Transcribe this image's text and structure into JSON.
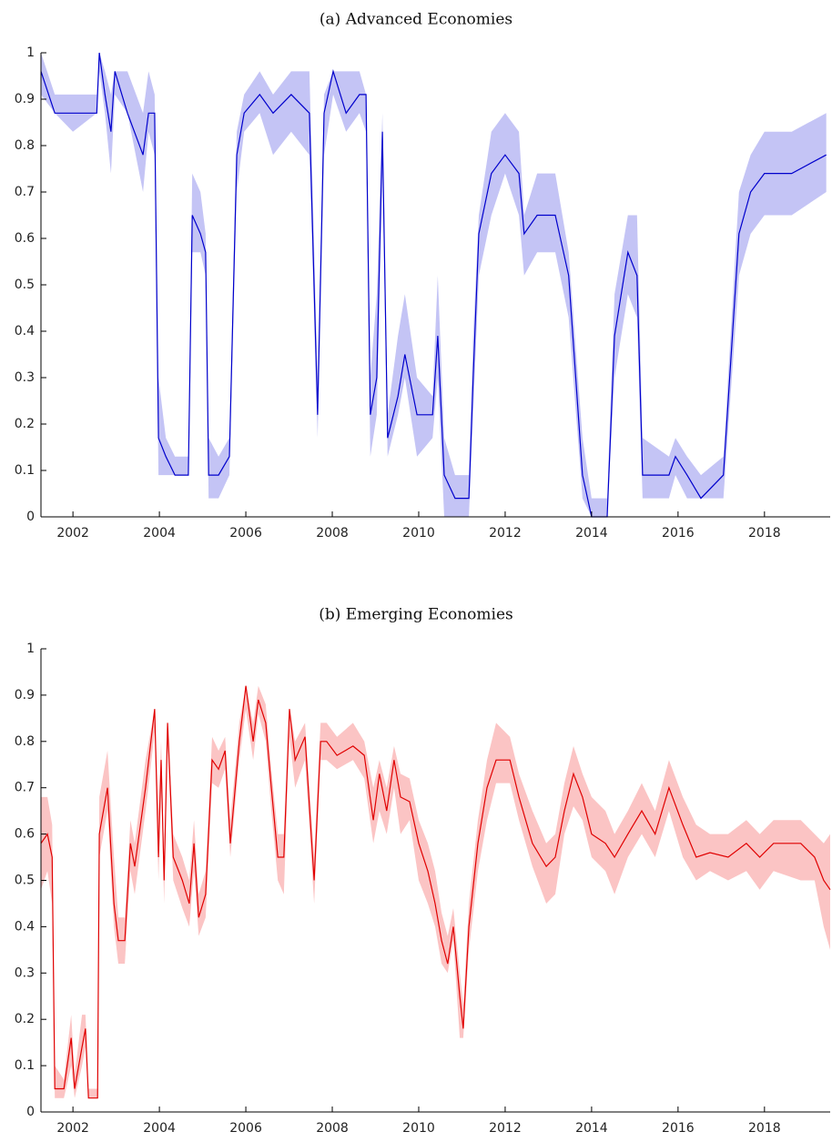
{
  "chart_data": [
    {
      "type": "line",
      "title": "(a) Advanced Economies",
      "color": "#0000cc",
      "band_color": "#c4c4f5",
      "x": [
        2001.26,
        2001.58,
        2002.0,
        2002.55,
        2002.61,
        2002.74,
        2002.88,
        2002.97,
        2003.26,
        2003.62,
        2003.75,
        2003.89,
        2003.98,
        2004.15,
        2004.36,
        2004.67,
        2004.76,
        2004.95,
        2005.07,
        2005.14,
        2005.37,
        2005.62,
        2005.79,
        2005.96,
        2006.32,
        2006.63,
        2007.05,
        2007.47,
        2007.66,
        2007.81,
        2008.02,
        2008.32,
        2008.63,
        2008.78,
        2008.88,
        2009.03,
        2009.16,
        2009.28,
        2009.52,
        2009.68,
        2009.96,
        2010.32,
        2010.44,
        2010.59,
        2010.84,
        2011.16,
        2011.26,
        2011.39,
        2011.68,
        2012.0,
        2012.32,
        2012.44,
        2012.74,
        2013.16,
        2013.47,
        2013.79,
        2014.0,
        2014.36,
        2014.53,
        2014.84,
        2015.05,
        2015.18,
        2015.79,
        2015.94,
        2016.21,
        2016.53,
        2017.05,
        2017.41,
        2017.68,
        2018.0,
        2018.63,
        2019.43
      ],
      "values": [
        0.96,
        0.87,
        0.87,
        0.87,
        1.0,
        0.91,
        0.83,
        0.96,
        0.87,
        0.78,
        0.87,
        0.87,
        0.17,
        0.13,
        0.09,
        0.09,
        0.65,
        0.61,
        0.57,
        0.09,
        0.09,
        0.13,
        0.78,
        0.87,
        0.91,
        0.87,
        0.91,
        0.87,
        0.22,
        0.87,
        0.96,
        0.87,
        0.91,
        0.91,
        0.22,
        0.3,
        0.83,
        0.17,
        0.26,
        0.35,
        0.22,
        0.22,
        0.39,
        0.09,
        0.04,
        0.04,
        0.3,
        0.61,
        0.74,
        0.78,
        0.74,
        0.61,
        0.65,
        0.65,
        0.52,
        0.09,
        0.0,
        0.0,
        0.39,
        0.57,
        0.52,
        0.09,
        0.09,
        0.13,
        0.09,
        0.04,
        0.09,
        0.61,
        0.7,
        0.74,
        0.74,
        0.78
      ],
      "lower": [
        0.91,
        0.87,
        0.83,
        0.87,
        0.96,
        0.87,
        0.74,
        0.91,
        0.87,
        0.7,
        0.83,
        0.78,
        0.09,
        0.09,
        0.09,
        0.09,
        0.57,
        0.57,
        0.52,
        0.04,
        0.04,
        0.09,
        0.7,
        0.83,
        0.87,
        0.78,
        0.83,
        0.78,
        0.17,
        0.78,
        0.91,
        0.83,
        0.87,
        0.83,
        0.13,
        0.22,
        0.74,
        0.13,
        0.22,
        0.3,
        0.13,
        0.17,
        0.3,
        0.0,
        0.0,
        0.0,
        0.22,
        0.52,
        0.65,
        0.74,
        0.65,
        0.52,
        0.57,
        0.57,
        0.43,
        0.04,
        0.0,
        0.0,
        0.3,
        0.48,
        0.43,
        0.04,
        0.04,
        0.09,
        0.04,
        0.04,
        0.04,
        0.52,
        0.61,
        0.65,
        0.65,
        0.7
      ],
      "upper": [
        1.0,
        0.91,
        0.91,
        0.91,
        1.0,
        0.96,
        0.91,
        0.96,
        0.96,
        0.87,
        0.96,
        0.91,
        0.3,
        0.17,
        0.13,
        0.13,
        0.74,
        0.7,
        0.61,
        0.17,
        0.13,
        0.17,
        0.83,
        0.91,
        0.96,
        0.91,
        0.96,
        0.96,
        0.3,
        0.91,
        0.96,
        0.96,
        0.96,
        0.91,
        0.3,
        0.48,
        0.87,
        0.22,
        0.39,
        0.48,
        0.3,
        0.26,
        0.52,
        0.17,
        0.09,
        0.09,
        0.39,
        0.65,
        0.83,
        0.87,
        0.83,
        0.65,
        0.74,
        0.74,
        0.57,
        0.17,
        0.04,
        0.04,
        0.48,
        0.65,
        0.65,
        0.17,
        0.13,
        0.17,
        0.13,
        0.09,
        0.13,
        0.7,
        0.78,
        0.83,
        0.83,
        0.87
      ],
      "xlim": [
        2001.26,
        2019.52
      ],
      "xticks": [
        2002,
        2004,
        2006,
        2008,
        2010,
        2012,
        2014,
        2016,
        2018
      ],
      "ylim": [
        0,
        1
      ],
      "yticks": [
        0,
        0.1,
        0.2,
        0.3,
        0.4,
        0.5,
        0.6,
        0.7,
        0.8,
        0.9,
        1
      ]
    },
    {
      "type": "line",
      "title": "(b) Emerging Economies",
      "color": "#e00000",
      "band_color": "#fbc4c4",
      "x": [
        2001.26,
        2001.41,
        2001.52,
        2001.58,
        2001.79,
        2001.96,
        2002.04,
        2002.21,
        2002.29,
        2002.36,
        2002.57,
        2002.61,
        2002.8,
        2002.95,
        2003.05,
        2003.2,
        2003.33,
        2003.43,
        2003.68,
        2003.89,
        2003.98,
        2004.04,
        2004.11,
        2004.19,
        2004.32,
        2004.53,
        2004.69,
        2004.8,
        2004.91,
        2005.07,
        2005.22,
        2005.37,
        2005.52,
        2005.64,
        2005.85,
        2006.0,
        2006.17,
        2006.29,
        2006.46,
        2006.59,
        2006.74,
        2006.88,
        2007.01,
        2007.14,
        2007.37,
        2007.58,
        2007.73,
        2007.87,
        2008.11,
        2008.48,
        2008.74,
        2008.95,
        2009.09,
        2009.26,
        2009.43,
        2009.58,
        2009.79,
        2010.0,
        2010.21,
        2010.38,
        2010.53,
        2010.67,
        2010.8,
        2010.95,
        2011.03,
        2011.16,
        2011.37,
        2011.58,
        2011.79,
        2012.11,
        2012.32,
        2012.63,
        2012.95,
        2013.16,
        2013.37,
        2013.58,
        2013.79,
        2014.0,
        2014.32,
        2014.53,
        2014.84,
        2015.16,
        2015.47,
        2015.79,
        2016.11,
        2016.42,
        2016.74,
        2017.16,
        2017.58,
        2017.89,
        2018.21,
        2018.84,
        2019.16,
        2019.37,
        2019.52
      ],
      "values": [
        0.58,
        0.6,
        0.55,
        0.05,
        0.05,
        0.16,
        0.05,
        0.14,
        0.18,
        0.03,
        0.03,
        0.6,
        0.7,
        0.45,
        0.37,
        0.37,
        0.58,
        0.53,
        0.7,
        0.87,
        0.55,
        0.76,
        0.5,
        0.84,
        0.55,
        0.5,
        0.45,
        0.58,
        0.42,
        0.47,
        0.76,
        0.74,
        0.78,
        0.58,
        0.8,
        0.92,
        0.8,
        0.89,
        0.84,
        0.7,
        0.55,
        0.55,
        0.87,
        0.76,
        0.81,
        0.5,
        0.8,
        0.8,
        0.77,
        0.79,
        0.77,
        0.63,
        0.73,
        0.65,
        0.76,
        0.68,
        0.67,
        0.58,
        0.52,
        0.45,
        0.37,
        0.32,
        0.4,
        0.25,
        0.18,
        0.4,
        0.58,
        0.7,
        0.76,
        0.76,
        0.68,
        0.58,
        0.53,
        0.55,
        0.65,
        0.73,
        0.68,
        0.6,
        0.58,
        0.55,
        0.6,
        0.65,
        0.6,
        0.7,
        0.62,
        0.55,
        0.56,
        0.55,
        0.58,
        0.55,
        0.58,
        0.58,
        0.55,
        0.5,
        0.48
      ],
      "lower": [
        0.48,
        0.52,
        0.45,
        0.03,
        0.03,
        0.1,
        0.03,
        0.1,
        0.14,
        0.03,
        0.03,
        0.55,
        0.65,
        0.4,
        0.32,
        0.32,
        0.52,
        0.47,
        0.65,
        0.82,
        0.5,
        0.7,
        0.45,
        0.79,
        0.5,
        0.44,
        0.4,
        0.52,
        0.38,
        0.42,
        0.71,
        0.7,
        0.74,
        0.55,
        0.76,
        0.87,
        0.76,
        0.86,
        0.8,
        0.65,
        0.5,
        0.47,
        0.81,
        0.7,
        0.76,
        0.45,
        0.76,
        0.76,
        0.74,
        0.76,
        0.72,
        0.58,
        0.65,
        0.6,
        0.7,
        0.6,
        0.63,
        0.5,
        0.45,
        0.4,
        0.32,
        0.3,
        0.37,
        0.16,
        0.16,
        0.35,
        0.52,
        0.63,
        0.71,
        0.71,
        0.63,
        0.53,
        0.45,
        0.47,
        0.6,
        0.66,
        0.63,
        0.55,
        0.52,
        0.47,
        0.55,
        0.6,
        0.55,
        0.65,
        0.55,
        0.5,
        0.52,
        0.5,
        0.52,
        0.48,
        0.52,
        0.5,
        0.5,
        0.4,
        0.35
      ],
      "upper": [
        0.68,
        0.68,
        0.62,
        0.1,
        0.07,
        0.21,
        0.08,
        0.21,
        0.21,
        0.05,
        0.05,
        0.68,
        0.78,
        0.55,
        0.42,
        0.42,
        0.63,
        0.58,
        0.76,
        0.87,
        0.65,
        0.8,
        0.55,
        0.84,
        0.6,
        0.55,
        0.5,
        0.63,
        0.47,
        0.52,
        0.81,
        0.78,
        0.81,
        0.63,
        0.84,
        0.92,
        0.84,
        0.92,
        0.88,
        0.74,
        0.6,
        0.6,
        0.87,
        0.8,
        0.84,
        0.55,
        0.84,
        0.84,
        0.81,
        0.84,
        0.8,
        0.7,
        0.76,
        0.7,
        0.79,
        0.73,
        0.72,
        0.63,
        0.58,
        0.52,
        0.43,
        0.38,
        0.44,
        0.3,
        0.23,
        0.45,
        0.63,
        0.76,
        0.84,
        0.81,
        0.73,
        0.65,
        0.58,
        0.6,
        0.71,
        0.79,
        0.73,
        0.68,
        0.65,
        0.6,
        0.65,
        0.71,
        0.65,
        0.76,
        0.68,
        0.62,
        0.6,
        0.6,
        0.63,
        0.6,
        0.63,
        0.63,
        0.6,
        0.58,
        0.6
      ],
      "xlim": [
        2001.26,
        2019.52
      ],
      "xticks": [
        2002,
        2004,
        2006,
        2008,
        2010,
        2012,
        2014,
        2016,
        2018
      ],
      "ylim": [
        0,
        1
      ],
      "yticks": [
        0,
        0.1,
        0.2,
        0.3,
        0.4,
        0.5,
        0.6,
        0.7,
        0.8,
        0.9,
        1
      ]
    }
  ]
}
